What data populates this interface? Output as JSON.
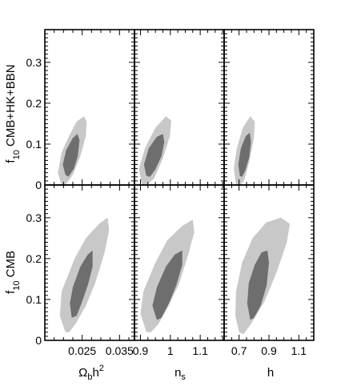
{
  "chart_data": {
    "type": "contour",
    "grid": false,
    "legend": "none",
    "colors": {
      "contour_outer": "#c8c8c8",
      "contour_inner": "#6e6e6e",
      "frame": "#000000"
    },
    "rows": [
      {
        "ylabel_main": "f",
        "ylabel_sub": "10",
        "ylabel_rest": " CMB+HK+BBN"
      },
      {
        "ylabel_main": "f",
        "ylabel_sub": "10",
        "ylabel_rest": " CMB"
      }
    ],
    "ylim": [
      0,
      0.38
    ],
    "yticks": [
      0.1,
      0.2,
      0.3
    ],
    "yticklabels": [
      "0.1",
      "0.2",
      "0.3"
    ],
    "y_zero_label": "0",
    "columns": [
      {
        "id": "omega_b_h2",
        "xlabel_parts": [
          "Ω",
          "b",
          "h",
          "2"
        ],
        "xlim": [
          0.015,
          0.039
        ],
        "xticks": [
          0.025,
          0.035
        ],
        "xticklabels": [
          "0.025",
          "0.035"
        ]
      },
      {
        "id": "n_s",
        "xlabel_parts": [
          "n",
          "s"
        ],
        "xlim": [
          0.88,
          1.18
        ],
        "xticks": [
          0.9,
          1.0,
          1.1
        ],
        "xticklabels": [
          "0.9",
          "1",
          "1.1"
        ]
      },
      {
        "id": "h",
        "xlabel_parts": [
          "h"
        ],
        "xlim": [
          0.6,
          1.2
        ],
        "xticks": [
          0.7,
          0.9,
          1.1
        ],
        "xticklabels": [
          "0.7",
          "0.9",
          "1.1"
        ]
      }
    ],
    "panels": [
      {
        "row": 0,
        "col": 0,
        "outer": [
          [
            0.0195,
            0.0
          ],
          [
            0.0185,
            0.03
          ],
          [
            0.0195,
            0.08
          ],
          [
            0.0215,
            0.12
          ],
          [
            0.0235,
            0.155
          ],
          [
            0.0255,
            0.168
          ],
          [
            0.0262,
            0.155
          ],
          [
            0.026,
            0.12
          ],
          [
            0.0245,
            0.07
          ],
          [
            0.0225,
            0.025
          ],
          [
            0.0205,
            0.0
          ]
        ],
        "inner": [
          [
            0.0205,
            0.025
          ],
          [
            0.0198,
            0.05
          ],
          [
            0.0207,
            0.085
          ],
          [
            0.0225,
            0.115
          ],
          [
            0.0237,
            0.125
          ],
          [
            0.0243,
            0.11
          ],
          [
            0.0238,
            0.07
          ],
          [
            0.0228,
            0.04
          ],
          [
            0.0213,
            0.02
          ]
        ]
      },
      {
        "row": 0,
        "col": 1,
        "outer": [
          [
            0.905,
            0.0
          ],
          [
            0.895,
            0.04
          ],
          [
            0.915,
            0.09
          ],
          [
            0.95,
            0.14
          ],
          [
            0.985,
            0.168
          ],
          [
            1.003,
            0.158
          ],
          [
            0.999,
            0.12
          ],
          [
            0.975,
            0.065
          ],
          [
            0.945,
            0.015
          ],
          [
            0.92,
            0.0
          ]
        ],
        "inner": [
          [
            0.92,
            0.022
          ],
          [
            0.912,
            0.05
          ],
          [
            0.928,
            0.09
          ],
          [
            0.955,
            0.118
          ],
          [
            0.975,
            0.125
          ],
          [
            0.98,
            0.105
          ],
          [
            0.97,
            0.07
          ],
          [
            0.95,
            0.038
          ],
          [
            0.932,
            0.02
          ]
        ]
      },
      {
        "row": 0,
        "col": 2,
        "outer": [
          [
            0.68,
            0.0
          ],
          [
            0.665,
            0.04
          ],
          [
            0.685,
            0.09
          ],
          [
            0.725,
            0.14
          ],
          [
            0.775,
            0.168
          ],
          [
            0.805,
            0.155
          ],
          [
            0.8,
            0.115
          ],
          [
            0.77,
            0.06
          ],
          [
            0.735,
            0.012
          ],
          [
            0.71,
            0.0
          ]
        ],
        "inner": [
          [
            0.705,
            0.022
          ],
          [
            0.695,
            0.05
          ],
          [
            0.712,
            0.09
          ],
          [
            0.745,
            0.12
          ],
          [
            0.772,
            0.128
          ],
          [
            0.78,
            0.105
          ],
          [
            0.768,
            0.068
          ],
          [
            0.742,
            0.035
          ],
          [
            0.72,
            0.02
          ]
        ]
      },
      {
        "row": 1,
        "col": 0,
        "outer": [
          [
            0.0205,
            0.02
          ],
          [
            0.019,
            0.06
          ],
          [
            0.0195,
            0.12
          ],
          [
            0.023,
            0.2
          ],
          [
            0.026,
            0.25
          ],
          [
            0.0295,
            0.285
          ],
          [
            0.0318,
            0.3
          ],
          [
            0.0322,
            0.27
          ],
          [
            0.031,
            0.215
          ],
          [
            0.0285,
            0.14
          ],
          [
            0.026,
            0.085
          ],
          [
            0.0232,
            0.04
          ],
          [
            0.0215,
            0.02
          ]
        ],
        "inner": [
          [
            0.0222,
            0.055
          ],
          [
            0.0217,
            0.09
          ],
          [
            0.0225,
            0.13
          ],
          [
            0.0245,
            0.18
          ],
          [
            0.0265,
            0.21
          ],
          [
            0.0278,
            0.22
          ],
          [
            0.0278,
            0.18
          ],
          [
            0.0265,
            0.135
          ],
          [
            0.0248,
            0.09
          ],
          [
            0.0235,
            0.06
          ]
        ]
      },
      {
        "row": 1,
        "col": 1,
        "outer": [
          [
            0.92,
            0.02
          ],
          [
            0.9,
            0.065
          ],
          [
            0.91,
            0.12
          ],
          [
            0.95,
            0.19
          ],
          [
            0.99,
            0.245
          ],
          [
            1.04,
            0.28
          ],
          [
            1.075,
            0.295
          ],
          [
            1.08,
            0.265
          ],
          [
            1.06,
            0.21
          ],
          [
            1.03,
            0.14
          ],
          [
            0.995,
            0.085
          ],
          [
            0.96,
            0.04
          ],
          [
            0.935,
            0.02
          ]
        ],
        "inner": [
          [
            0.955,
            0.05
          ],
          [
            0.94,
            0.085
          ],
          [
            0.955,
            0.13
          ],
          [
            0.985,
            0.18
          ],
          [
            1.015,
            0.21
          ],
          [
            1.04,
            0.22
          ],
          [
            1.04,
            0.185
          ],
          [
            1.02,
            0.135
          ],
          [
            0.995,
            0.09
          ],
          [
            0.97,
            0.055
          ]
        ]
      },
      {
        "row": 1,
        "col": 2,
        "outer": [
          [
            0.7,
            0.02
          ],
          [
            0.675,
            0.06
          ],
          [
            0.68,
            0.12
          ],
          [
            0.72,
            0.19
          ],
          [
            0.79,
            0.25
          ],
          [
            0.88,
            0.288
          ],
          [
            0.98,
            0.3
          ],
          [
            1.04,
            0.285
          ],
          [
            1.02,
            0.24
          ],
          [
            0.95,
            0.165
          ],
          [
            0.87,
            0.095
          ],
          [
            0.78,
            0.04
          ],
          [
            0.73,
            0.015
          ]
        ],
        "inner": [
          [
            0.775,
            0.05
          ],
          [
            0.755,
            0.09
          ],
          [
            0.765,
            0.14
          ],
          [
            0.805,
            0.185
          ],
          [
            0.85,
            0.215
          ],
          [
            0.89,
            0.22
          ],
          [
            0.9,
            0.19
          ],
          [
            0.885,
            0.135
          ],
          [
            0.845,
            0.085
          ],
          [
            0.8,
            0.055
          ]
        ]
      }
    ]
  }
}
